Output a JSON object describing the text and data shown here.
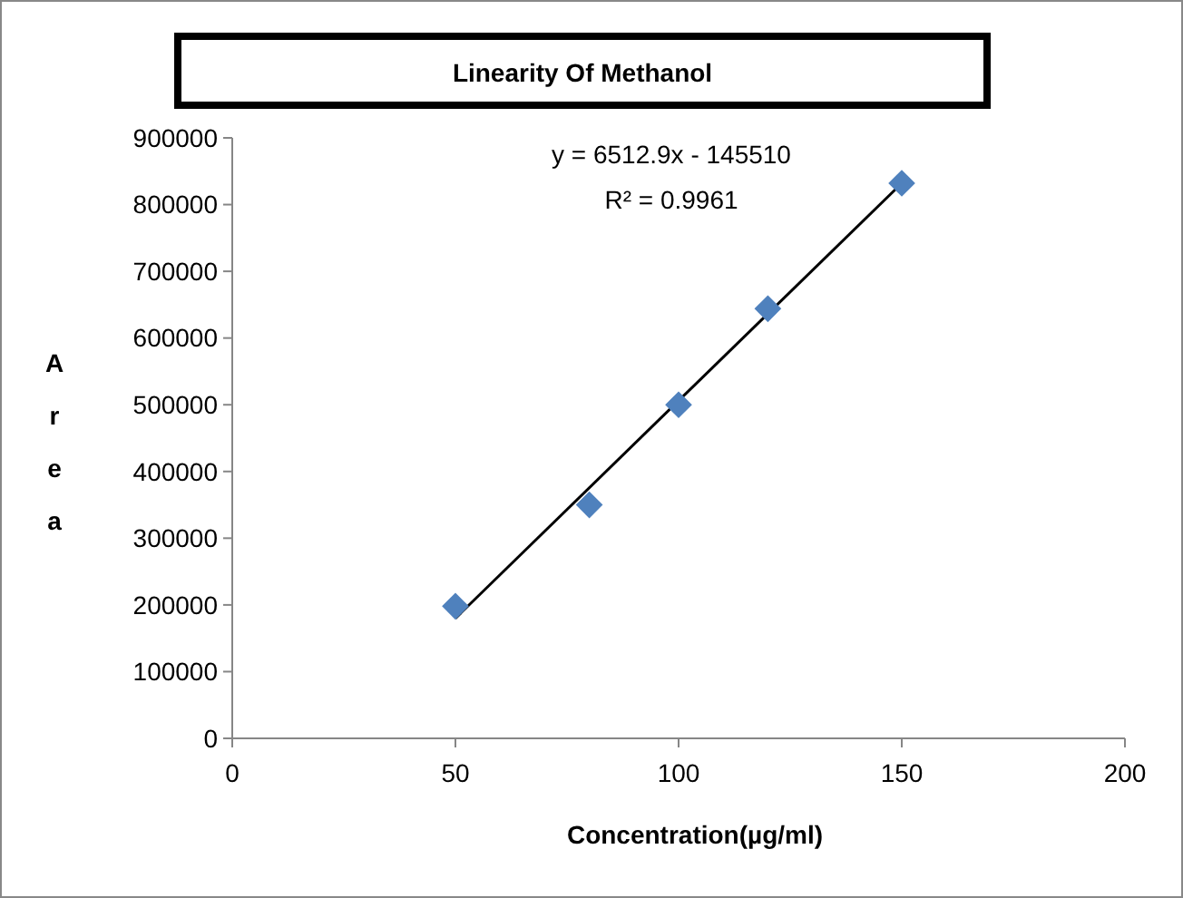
{
  "chart_data": {
    "type": "scatter",
    "title": "Linearity Of Methanol",
    "xlabel": "Concentration(µg/ml)",
    "ylabel": "Area",
    "xlim": [
      0,
      200
    ],
    "xticks": [
      0,
      50,
      100,
      150,
      200
    ],
    "ylim": [
      0,
      900000
    ],
    "yticks": [
      0,
      100000,
      200000,
      300000,
      400000,
      500000,
      600000,
      700000,
      800000,
      900000
    ],
    "grid": false,
    "series": [
      {
        "marker": "diamond",
        "color": "#4f81bd",
        "x": [
          50,
          80,
          100,
          120,
          150
        ],
        "values": [
          198000,
          350000,
          500000,
          644000,
          832000
        ]
      },
      {
        "type": "line",
        "color": "#000000",
        "x": [
          50,
          150
        ],
        "values": [
          180000,
          832000
        ]
      }
    ],
    "annotations": [
      "y = 6512.9x - 145510",
      "R² = 0.9961"
    ]
  }
}
